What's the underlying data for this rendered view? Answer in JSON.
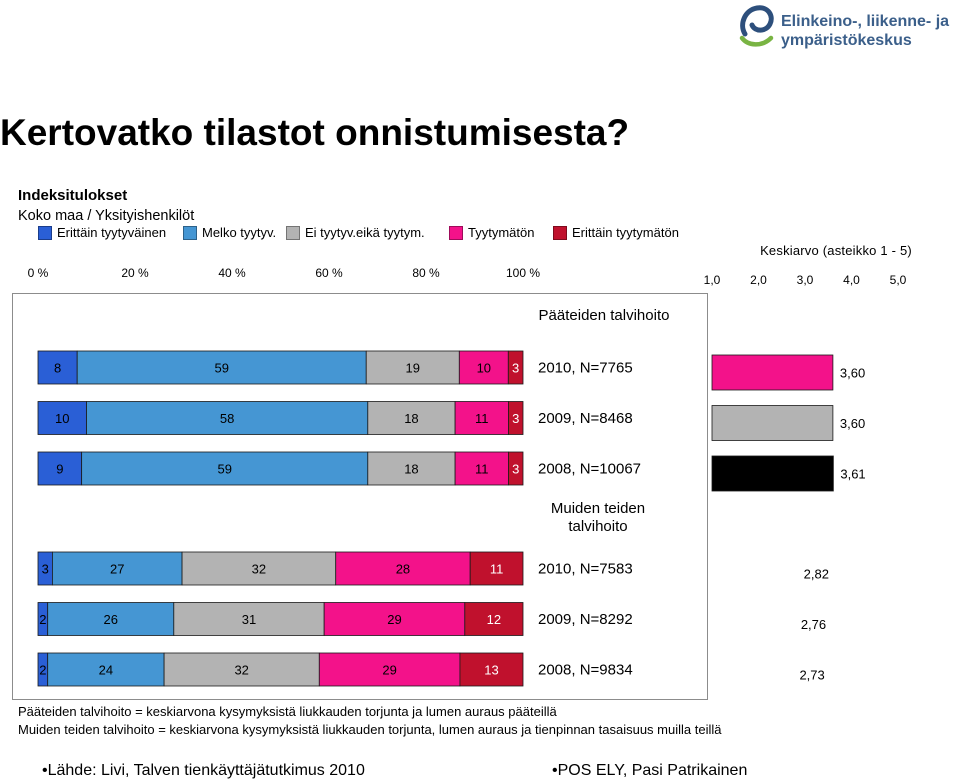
{
  "logo": {
    "icon": "ely-centre-logo-icon",
    "line1": "Elinkeino-, liikenne- ja",
    "line2": "ympäristökeskus",
    "text_color": "#3b5f8a"
  },
  "slide": {
    "title": "Kertovatko tilastot onnistumisesta?"
  },
  "chart_data": {
    "type": "bar",
    "orientation": "horizontal",
    "stacking": "percent",
    "title": "Indeksitulokset",
    "subtitle": "Koko maa / Yksityishenkilöt",
    "legend_position": "top",
    "grid": false,
    "xlim": [
      0,
      100
    ],
    "x_ticks": [
      0,
      20,
      40,
      60,
      80,
      100
    ],
    "x_tick_labels": [
      "0 %",
      "20 %",
      "40 %",
      "60 %",
      "80 %",
      "100 %"
    ],
    "groups": [
      {
        "name": "Pääteiden talvihoito",
        "rows": 3
      },
      {
        "name": "Muiden teiden talvihoito",
        "rows": 3
      }
    ],
    "categories": [
      "2010, N=7765",
      "2009, N=8468",
      "2008, N=10067",
      "2010, N=7583",
      "2009, N=8292",
      "2008, N=9834"
    ],
    "series": [
      {
        "name": "Erittäin tyytyväinen",
        "color": "#2a5fd6",
        "values": [
          8,
          10,
          9,
          3,
          2,
          2
        ]
      },
      {
        "name": "Melko tyytyv.",
        "color": "#4596d3",
        "values": [
          59,
          58,
          59,
          27,
          26,
          24
        ]
      },
      {
        "name": "Ei tyytyv.eikä tyytym.",
        "color": "#b3b3b3",
        "values": [
          19,
          18,
          18,
          32,
          31,
          32
        ]
      },
      {
        "name": "Tyytymätön",
        "color": "#f3128a",
        "values": [
          10,
          11,
          11,
          28,
          29,
          29
        ]
      },
      {
        "name": "Erittäin tyytymätön",
        "color": "#c0112d",
        "values": [
          3,
          3,
          3,
          11,
          12,
          13
        ]
      }
    ],
    "mean_chart": {
      "type": "bar",
      "title": "Keskiarvo (asteikko 1 - 5)",
      "xlim": [
        1,
        5
      ],
      "ticks": [
        1,
        2,
        3,
        4,
        5
      ],
      "tick_labels": [
        "1,0",
        "2,0",
        "3,0",
        "4,0",
        "5,0"
      ],
      "values": [
        3.6,
        3.6,
        3.61,
        2.82,
        2.76,
        2.73
      ],
      "labels": [
        "3,60",
        "3,60",
        "3,61",
        "2,82",
        "2,76",
        "2,73"
      ],
      "bar_colors": [
        "#f3128a",
        "#b3b3b3",
        "#000000"
      ]
    }
  },
  "footnotes": [
    "Pääteiden talvihoito = keskiarvona kysymyksistä liukkauden torjunta ja lumen auraus pääteillä",
    "Muiden teiden talvihoito = keskiarvona kysymyksistä liukkauden torjunta, lumen auraus ja tienpinnan tasaisuus muilla teillä"
  ],
  "footer": {
    "source": "•Lähde: Livi, Talven tienkäyttäjätutkimus 2010",
    "author": "•POS ELY, Pasi Patrikainen"
  }
}
